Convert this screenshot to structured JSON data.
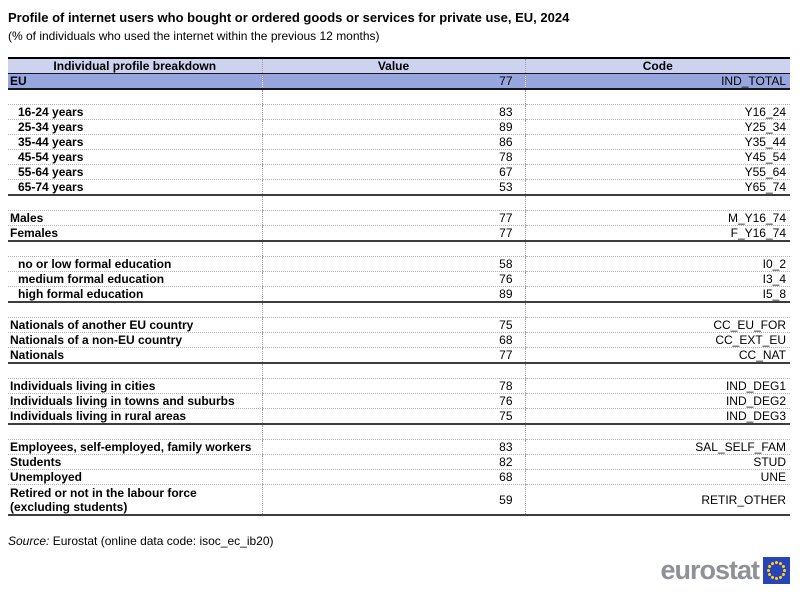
{
  "title": "Profile of internet users who bought or ordered goods or services for private use, EU, 2024",
  "subtitle": "(% of individuals who used the internet within the previous 12 months)",
  "table": {
    "headers": [
      "Individual profile breakdown",
      "Value",
      "Code"
    ],
    "total_row": {
      "label": "EU",
      "value": "77",
      "code": "IND_TOTAL"
    },
    "groups": [
      {
        "rows": [
          {
            "label": "16-24 years",
            "value": "83",
            "code": "Y16_24",
            "indent": true
          },
          {
            "label": "25-34 years",
            "value": "89",
            "code": "Y25_34",
            "indent": true
          },
          {
            "label": "35-44 years",
            "value": "86",
            "code": "Y35_44",
            "indent": true
          },
          {
            "label": "45-54 years",
            "value": "78",
            "code": "Y45_54",
            "indent": true
          },
          {
            "label": "55-64 years",
            "value": "67",
            "code": "Y55_64",
            "indent": true
          },
          {
            "label": "65-74 years",
            "value": "53",
            "code": "Y65_74",
            "indent": true
          }
        ]
      },
      {
        "rows": [
          {
            "label": "Males",
            "value": "77",
            "code": "M_Y16_74"
          },
          {
            "label": "Females",
            "value": "77",
            "code": "F_Y16_74"
          }
        ]
      },
      {
        "rows": [
          {
            "label": "no or low formal education",
            "value": "58",
            "code": "I0_2",
            "indent": true
          },
          {
            "label": "medium formal education",
            "value": "76",
            "code": "I3_4",
            "indent": true
          },
          {
            "label": "high formal education",
            "value": "89",
            "code": "I5_8",
            "indent": true
          }
        ]
      },
      {
        "rows": [
          {
            "label": "Nationals of another EU country",
            "value": "75",
            "code": "CC_EU_FOR"
          },
          {
            "label": "Nationals of a non-EU country",
            "value": "68",
            "code": "CC_EXT_EU"
          },
          {
            "label": "Nationals",
            "value": "77",
            "code": "CC_NAT"
          }
        ]
      },
      {
        "rows": [
          {
            "label": "Individuals living in cities",
            "value": "78",
            "code": "IND_DEG1"
          },
          {
            "label": "Individuals living in towns and suburbs",
            "value": "76",
            "code": "IND_DEG2"
          },
          {
            "label": "Individuals living in rural areas",
            "value": "75",
            "code": "IND_DEG3"
          }
        ]
      },
      {
        "rows": [
          {
            "label": "Employees, self-employed, family workers",
            "value": "83",
            "code": "SAL_SELF_FAM"
          },
          {
            "label": "Students",
            "value": "82",
            "code": "STUD"
          },
          {
            "label": "Unemployed",
            "value": "68",
            "code": "UNE"
          },
          {
            "label": "Retired or not in the labour force",
            "label2": "(excluding students)",
            "value": "59",
            "code": "RETIR_OTHER",
            "tall": true
          }
        ]
      }
    ]
  },
  "source": {
    "prefix": "Source:",
    "text": "Eurostat (online data code: isoc_ec_ib20)"
  },
  "logo": {
    "text": "eurostat"
  },
  "colors": {
    "header_bg": "#cdd3ef",
    "total_row_bg": "#97a6df",
    "dark_border": "#16161f",
    "section_border": "#3d3d3d",
    "logo_gray": "#8e9297",
    "flag_blue": "#2943b8",
    "star_yellow": "#ffd617"
  },
  "chart_data": {
    "type": "table",
    "title": "Profile of internet users who bought or ordered goods or services for private use, EU, 2024",
    "subtitle": "(% of individuals who used the internet within the previous 12 months)",
    "columns": [
      "Individual profile breakdown",
      "Value",
      "Code"
    ],
    "rows": [
      [
        "EU",
        77,
        "IND_TOTAL"
      ],
      [
        "16-24 years",
        83,
        "Y16_24"
      ],
      [
        "25-34 years",
        89,
        "Y25_34"
      ],
      [
        "35-44 years",
        86,
        "Y35_44"
      ],
      [
        "45-54 years",
        78,
        "Y45_54"
      ],
      [
        "55-64 years",
        67,
        "Y55_64"
      ],
      [
        "65-74 years",
        53,
        "Y65_74"
      ],
      [
        "Males",
        77,
        "M_Y16_74"
      ],
      [
        "Females",
        77,
        "F_Y16_74"
      ],
      [
        "no or low formal education",
        58,
        "I0_2"
      ],
      [
        "medium formal education",
        76,
        "I3_4"
      ],
      [
        "high formal education",
        89,
        "I5_8"
      ],
      [
        "Nationals of another EU country",
        75,
        "CC_EU_FOR"
      ],
      [
        "Nationals of a non-EU country",
        68,
        "CC_EXT_EU"
      ],
      [
        "Nationals",
        77,
        "CC_NAT"
      ],
      [
        "Individuals living in cities",
        78,
        "IND_DEG1"
      ],
      [
        "Individuals living in towns and suburbs",
        76,
        "IND_DEG2"
      ],
      [
        "Individuals living in rural areas",
        75,
        "IND_DEG3"
      ],
      [
        "Employees, self-employed, family workers",
        83,
        "SAL_SELF_FAM"
      ],
      [
        "Students",
        82,
        "STUD"
      ],
      [
        "Unemployed",
        68,
        "UNE"
      ],
      [
        "Retired or not in the labour force (excluding students)",
        59,
        "RETIR_OTHER"
      ]
    ],
    "source": "Eurostat (online data code: isoc_ec_ib20)"
  }
}
